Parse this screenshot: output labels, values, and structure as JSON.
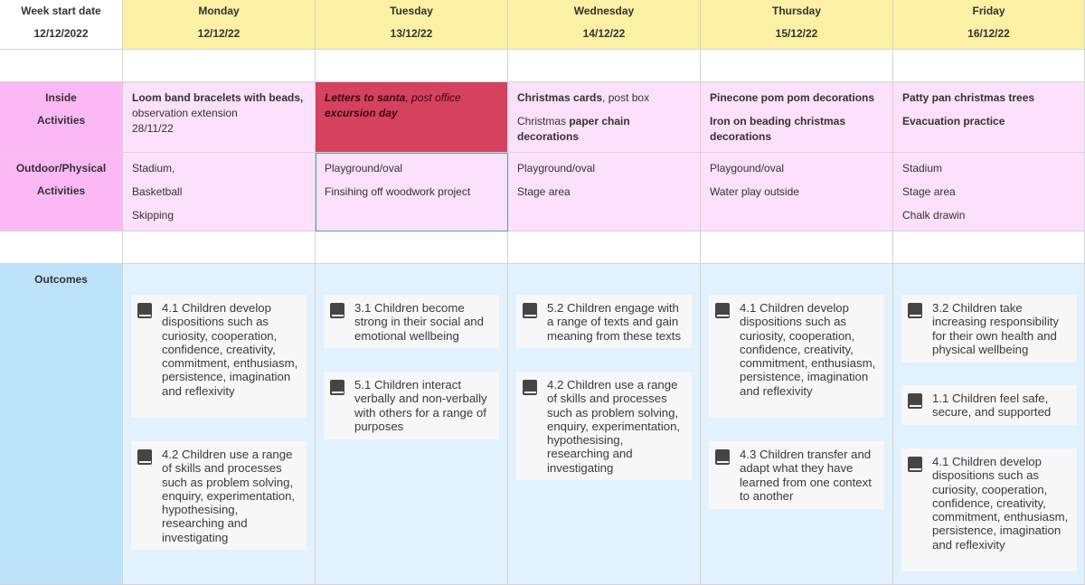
{
  "header": {
    "week_label": "Week start date",
    "week_date": "12/12/2022",
    "days": [
      {
        "name": "Monday",
        "date": "12/12/22"
      },
      {
        "name": "Tuesday",
        "date": "13/12/22"
      },
      {
        "name": "Wednesday",
        "date": "14/12/22"
      },
      {
        "name": "Thursday",
        "date": "15/12/22"
      },
      {
        "name": "Friday",
        "date": "16/12/22"
      }
    ]
  },
  "labels": {
    "inside_1": "Inside",
    "inside_2": "Activities",
    "outdoor_1": "Outdoor/Physical",
    "outdoor_2": "Activities",
    "outcomes": "Outcomes"
  },
  "inside": {
    "mon": {
      "bold": "Loom band bracelets with beads,",
      "rest": " observation extension",
      "extra": "28/11/22"
    },
    "tue": {
      "bold": "Letters to santa",
      "rest": ", post office",
      "bold2": "excursion day"
    },
    "wed": {
      "bold": "Christmas cards",
      "rest": ", post box",
      "l2a": "Christmas ",
      "l2b": "paper chain",
      "l3": "decorations"
    },
    "thu": {
      "l1": "Pinecone pom pom decorations",
      "l2": "Iron on beading christmas",
      "l3": "decorations"
    },
    "fri": {
      "l1": "Patty pan christmas trees",
      "l2": "Evacuation practice"
    }
  },
  "outdoor": {
    "mon": [
      "Stadium,",
      "Basketball",
      "Skipping"
    ],
    "tue": [
      "Playground/oval",
      "Finsihing off woodwork project"
    ],
    "wed": [
      "Playground/oval",
      "Stage area"
    ],
    "thu": [
      "Playgound/oval",
      "Water play outside"
    ],
    "fri": [
      "Stadium",
      "Stage area",
      "Chalk drawin"
    ]
  },
  "outcomes": {
    "mon": [
      "4.1 Children develop dispositions such as curiosity, cooperation, confidence, creativity, commitment, enthusiasm, persistence, imagination and reflexivity",
      "4.2 Children use a range of skills and processes such as problem solving, enquiry, experimentation, hypothesising, researching and investigating"
    ],
    "tue": [
      "3.1 Children become strong in their social and emotional wellbeing",
      "5.1 Children interact verbally and non-verbally with others for a range of purposes"
    ],
    "wed": [
      "5.2 Children engage with a range of texts and gain meaning from these texts",
      "4.2 Children use a range of skills and processes such as problem solving, enquiry, experimentation, hypothesising, researching and investigating"
    ],
    "thu": [
      "4.1 Children develop dispositions such as curiosity, cooperation, confidence, creativity, commitment, enthusiasm, persistence, imagination and reflexivity",
      "4.3 Children transfer and adapt what they have learned from one context to another"
    ],
    "fri": [
      "3.2 Children take increasing responsibility for their own health and physical wellbeing",
      "1.1 Children feel safe, secure, and supported",
      "4.1 Children develop dispositions such as curiosity, cooperation, confidence, creativity, commitment, enthusiasm, persistence, imagination and reflexivity"
    ]
  },
  "colors": {
    "header": "#fcf0a4",
    "pink_label": "#fbb8f5",
    "pink": "#fde0fb",
    "highlight": "#d5415f",
    "blue_label": "#bde3fb",
    "blue": "#e1f1fd"
  },
  "icons": {
    "outcome": "book-icon"
  }
}
